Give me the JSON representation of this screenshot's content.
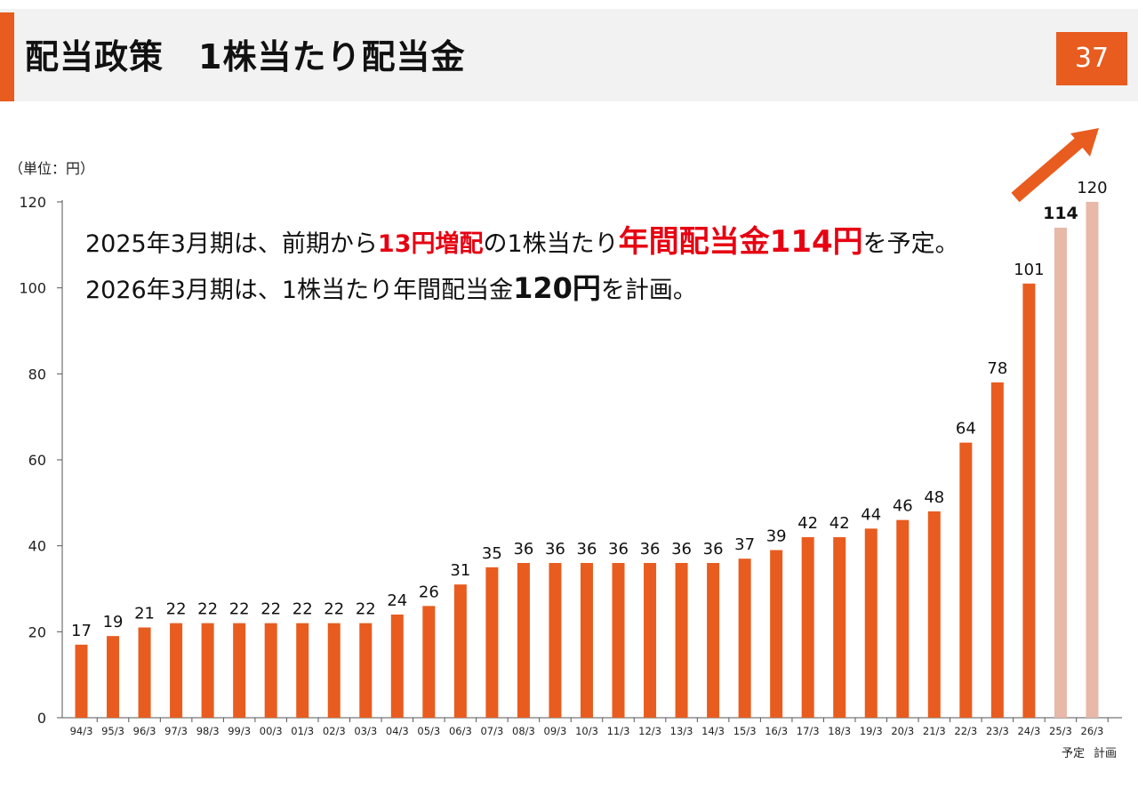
{
  "header": {
    "title": "配当政策　1株当たり配当金",
    "page_number": "37"
  },
  "unit_label": "（単位：円）",
  "notes": {
    "line1": {
      "p1": "2025年3月期は、前期から",
      "p2": "13円増配",
      "p3": "の1株当たり",
      "p4": "年間配当金114円",
      "p5": "を予定。"
    },
    "line2": {
      "p1": "2026年3月期は、1株当たり年間配当金",
      "p2": "120円",
      "p3": "を計画。"
    }
  },
  "footnotes": {
    "forecast": "予定",
    "plan": "計画"
  },
  "colors": {
    "accent": "#e85c1f",
    "bar_actual": "#e85c1f",
    "bar_future": "#e8b8a8",
    "highlight_red": "#e60012"
  },
  "chart_data": {
    "type": "bar",
    "ylim": [
      0,
      120
    ],
    "yticks": [
      0,
      20,
      40,
      60,
      80,
      100,
      120
    ],
    "grid": false,
    "categories": [
      "94/3",
      "95/3",
      "96/3",
      "97/3",
      "98/3",
      "99/3",
      "00/3",
      "01/3",
      "02/3",
      "03/3",
      "04/3",
      "05/3",
      "06/3",
      "07/3",
      "08/3",
      "09/3",
      "10/3",
      "11/3",
      "12/3",
      "13/3",
      "14/3",
      "15/3",
      "16/3",
      "17/3",
      "18/3",
      "19/3",
      "20/3",
      "21/3",
      "22/3",
      "23/3",
      "24/3",
      "25/3",
      "26/3"
    ],
    "values": [
      17,
      19,
      21,
      22,
      22,
      22,
      22,
      22,
      22,
      22,
      24,
      26,
      31,
      35,
      36,
      36,
      36,
      36,
      36,
      36,
      36,
      37,
      39,
      42,
      42,
      44,
      46,
      48,
      64,
      78,
      101,
      114,
      120
    ],
    "future_flags": [
      false,
      false,
      false,
      false,
      false,
      false,
      false,
      false,
      false,
      false,
      false,
      false,
      false,
      false,
      false,
      false,
      false,
      false,
      false,
      false,
      false,
      false,
      false,
      false,
      false,
      false,
      false,
      false,
      false,
      false,
      false,
      true,
      true
    ],
    "trend_arrow": "up-right"
  }
}
